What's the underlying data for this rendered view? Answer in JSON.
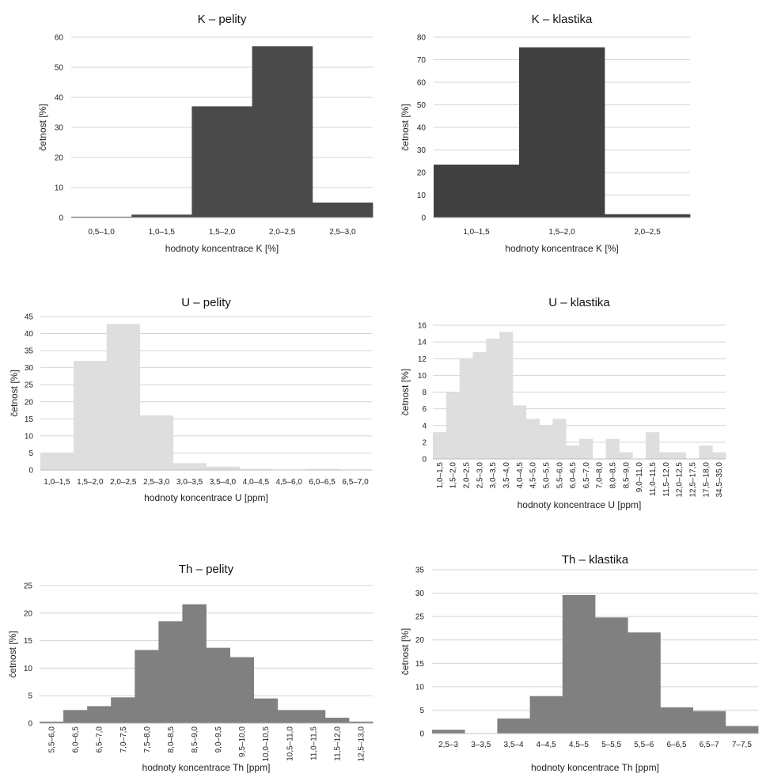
{
  "chart_data": [
    {
      "type": "bar",
      "title": "K – pelity",
      "xlabel": "hodnoty koncentrace K [%]",
      "ylabel": "četnost [%]",
      "categories": [
        "0,5–1,0",
        "1,0–1,5",
        "1,5–2,0",
        "2,0–2,5",
        "2,5–3,0"
      ],
      "values": [
        0.3,
        1.0,
        37.0,
        57.0,
        5.0
      ],
      "ylim": [
        0,
        60
      ],
      "yticks": [
        0,
        10,
        20,
        30,
        40,
        50,
        60
      ],
      "color": "#4a4a4a",
      "grid": true,
      "xlabels_rotated": false,
      "xlabel_color": "#222222"
    },
    {
      "type": "bar",
      "title": "K – klastika",
      "xlabel": "hodnoty koncentrace K [%]",
      "ylabel": "četnost [%]",
      "categories": [
        "1,0–1,5",
        "1,5–2,0",
        "2,0–2,5"
      ],
      "values": [
        23.5,
        75.5,
        1.5
      ],
      "ylim": [
        0,
        80
      ],
      "yticks": [
        0,
        10,
        20,
        30,
        40,
        50,
        60,
        70,
        80
      ],
      "color": "#404040",
      "grid": true,
      "xlabels_rotated": false,
      "xlabel_color": "#222222"
    },
    {
      "type": "bar",
      "title": "U – pelity",
      "xlabel": "hodnoty koncentrace U [ppm]",
      "ylabel": "četnost [%]",
      "categories": [
        "1,0–1,5",
        "1,5–2,0",
        "2,0–2,5",
        "2,5–3,0",
        "3,0–3,5",
        "3,5–4,0",
        "4,0–4,5",
        "4,5–6,0",
        "6,0–6,5",
        "6,5–7,0"
      ],
      "values": [
        5.0,
        32.0,
        42.8,
        16.0,
        2.0,
        1.0,
        0.3,
        0.1,
        0.3,
        0.1
      ],
      "ylim": [
        0,
        45
      ],
      "yticks": [
        0,
        5,
        10,
        15,
        20,
        25,
        30,
        35,
        40,
        45
      ],
      "color": "#dedede",
      "grid": true,
      "xlabels_rotated": false,
      "xlabel_color": "#222222"
    },
    {
      "type": "bar",
      "title": "U – klastika",
      "xlabel": "hodnoty koncentrace U [ppm]",
      "ylabel": "četnost [%]",
      "categories": [
        "1,0–1,5",
        "1,5–2,0",
        "2,0–2,5",
        "2,5–3,0",
        "3,0–3,5",
        "3,5–4,0",
        "4,0–4,5",
        "4,5–5,0",
        "5,0–5,5",
        "5,5–6,0",
        "6,0–6,5",
        "6,5–7,0",
        "7,0–8,0",
        "8,0–8,5",
        "8,5–9,0",
        "9,0–11,0",
        "11,0–11,5",
        "11,5–12,0",
        "12,0–12,5",
        "12,5–17,5",
        "17,5–18,0",
        "34,5–35,0"
      ],
      "values": [
        3.2,
        8.0,
        12.0,
        12.8,
        14.4,
        15.2,
        6.4,
        4.8,
        4.0,
        4.8,
        1.6,
        2.4,
        0,
        2.4,
        0.8,
        0,
        3.2,
        0.8,
        0.8,
        0,
        1.6,
        0.8
      ],
      "ylim": [
        0,
        16
      ],
      "yticks": [
        0,
        2,
        4,
        6,
        8,
        10,
        12,
        14,
        16
      ],
      "color": "#dedede",
      "grid": true,
      "xlabels_rotated": true,
      "xlabel_color": "#8a8a8a"
    },
    {
      "type": "bar",
      "title": "Th – pelity",
      "xlabel": "hodnoty koncentrace Th [ppm]",
      "ylabel": "četnost [%]",
      "categories": [
        "5,5–6,0",
        "6,0–6,5",
        "6,5–7,0",
        "7,0–7,5",
        "7,5–8,0",
        "8,0–8,5",
        "8,5–9,0",
        "9,0–9,5",
        "9,5–10,0",
        "10,0–10,5",
        "10,5–11,0",
        "11,0–11,5",
        "11,5–12,0",
        "12,5–13,0"
      ],
      "values": [
        0.3,
        2.4,
        3.1,
        4.7,
        13.3,
        18.5,
        21.6,
        13.7,
        12.0,
        4.5,
        2.4,
        2.4,
        1.0,
        0.3
      ],
      "ylim": [
        0,
        25
      ],
      "yticks": [
        0,
        5,
        10,
        15,
        20,
        25
      ],
      "color": "#808080",
      "grid": true,
      "xlabels_rotated": true,
      "xlabel_color": "#222222"
    },
    {
      "type": "bar",
      "title": "Th – klastika",
      "xlabel": "hodnoty koncentrace Th [ppm]",
      "ylabel": "četnost [%]",
      "categories": [
        "2,5–3",
        "3–3,5",
        "3,5–4",
        "4–4,5",
        "4,5–5",
        "5–5,5",
        "5,5–6",
        "6–6,5",
        "6,5–7",
        "7–7,5"
      ],
      "values": [
        0.8,
        0,
        3.2,
        8.0,
        29.6,
        24.8,
        21.6,
        5.6,
        4.8,
        1.6
      ],
      "ylim": [
        0,
        35
      ],
      "yticks": [
        0,
        5,
        10,
        15,
        20,
        25,
        30,
        35
      ],
      "color": "#808080",
      "grid": true,
      "xlabels_rotated": false,
      "xlabel_color": "#222222"
    }
  ]
}
